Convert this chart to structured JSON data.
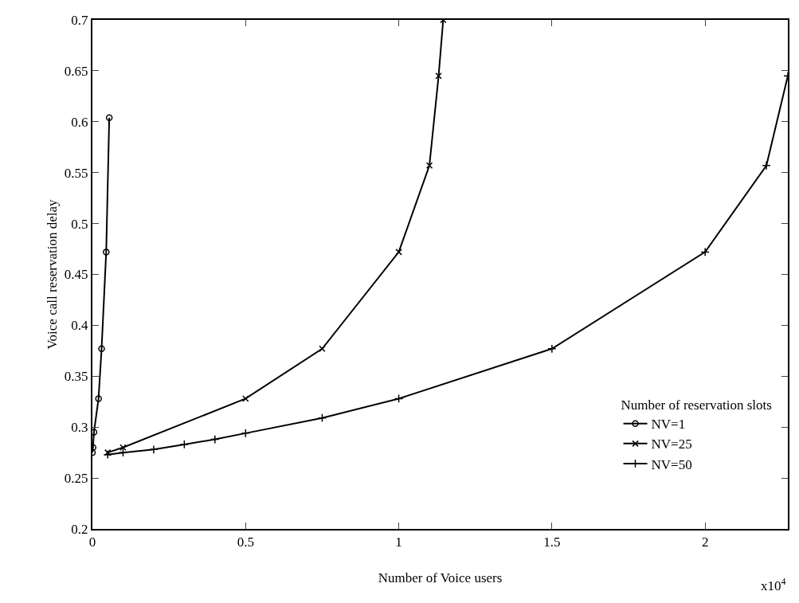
{
  "chart_data": {
    "type": "line",
    "xlabel": "Number of Voice users",
    "ylabel": "Voice call reservation delay",
    "legend_title": "Number of reservation slots",
    "annotations": [
      "x10$^{4}$"
    ],
    "series": [
      {
        "name": "NV=1",
        "color": "#000000",
        "marker": "circle",
        "x": [
          0,
          0.002,
          0.005,
          0.02,
          0.03,
          0.045,
          0.055
        ],
        "values": [
          0.275,
          0.28,
          0.295,
          0.328,
          0.377,
          0.472,
          0.604
        ]
      },
      {
        "name": "NV=25",
        "color": "#000000",
        "marker": "cross",
        "x": [
          0.05,
          0.1,
          0.5,
          0.75,
          1.0,
          1.1,
          1.13,
          1.145
        ],
        "values": [
          0.275,
          0.28,
          0.328,
          0.377,
          0.472,
          0.557,
          0.645,
          0.7
        ]
      },
      {
        "name": "NV=50",
        "color": "#000000",
        "marker": "plus",
        "x": [
          0.05,
          0.1,
          0.2,
          0.3,
          0.4,
          0.5,
          0.75,
          1.0,
          1.5,
          2.0,
          2.2,
          2.27
        ],
        "values": [
          0.273,
          0.275,
          0.278,
          0.283,
          0.288,
          0.294,
          0.309,
          0.328,
          0.377,
          0.472,
          0.557,
          0.645
        ]
      }
    ],
    "xlim": [
      0,
      2.27
    ],
    "xticks": [
      0,
      0.5,
      1,
      1.5,
      2
    ],
    "ylim": [
      0.2,
      0.7
    ],
    "yticks": [
      0.2,
      0.25,
      0.3,
      0.35,
      0.4,
      0.45,
      0.5,
      0.55,
      0.6,
      0.65,
      0.7
    ],
    "grid": false,
    "legend": "bottom right",
    "line_style": "solid"
  }
}
